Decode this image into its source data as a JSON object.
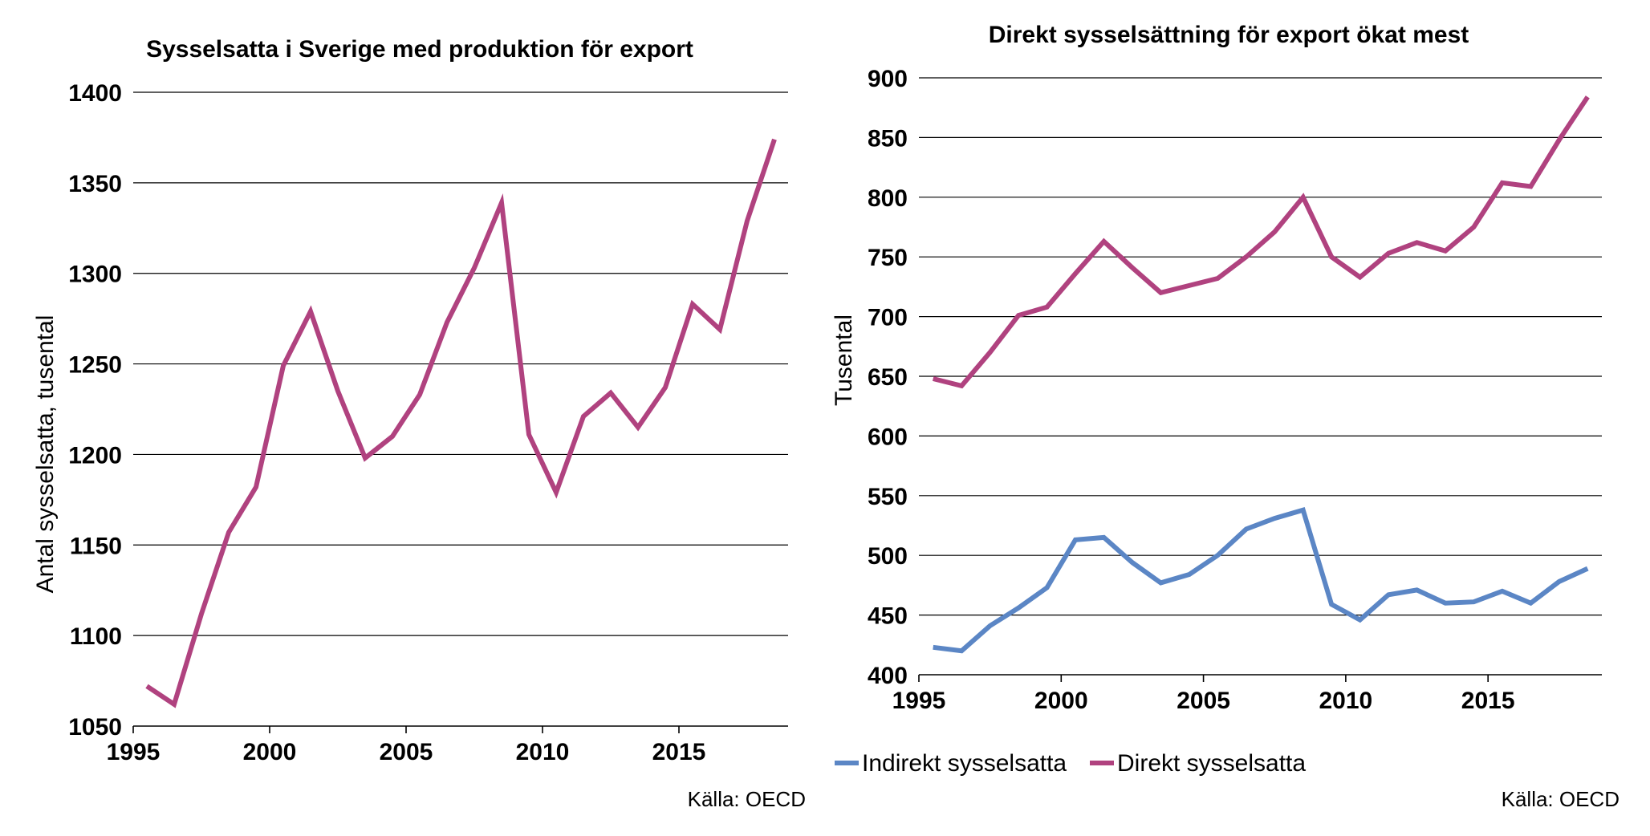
{
  "chart_data": [
    {
      "type": "line",
      "title": "Sysselsatta i Sverige med produktion för export",
      "xlabel": "",
      "ylabel": "Antal sysselsatta, tusental",
      "source": "Källa: OECD",
      "xlim": [
        1995,
        2019
      ],
      "ylim": [
        1050,
        1400
      ],
      "xticks": [
        "1995",
        "2000",
        "2005",
        "2010",
        "2015"
      ],
      "yticks": [
        "1050",
        "1100",
        "1150",
        "1200",
        "1250",
        "1300",
        "1350",
        "1400"
      ],
      "grid": "horizontal",
      "x": [
        1995.5,
        1996.5,
        1997.5,
        1998.5,
        1999.5,
        2000.5,
        2001.5,
        2002.5,
        2003.5,
        2004.5,
        2005.5,
        2006.5,
        2007.5,
        2008.5,
        2009.5,
        2010.5,
        2011.5,
        2012.5,
        2013.5,
        2014.5,
        2015.5,
        2016.5,
        2017.5,
        2018.5
      ],
      "series": [
        {
          "color": "#b0427f",
          "values": [
            1072,
            1062,
            1112,
            1157,
            1182,
            1249,
            1279,
            1235,
            1198,
            1210,
            1233,
            1273,
            1303,
            1339,
            1211,
            1179,
            1221,
            1234,
            1215,
            1237,
            1283,
            1269,
            1329,
            1374
          ]
        }
      ]
    },
    {
      "type": "line",
      "title": "Direkt sysselsättning för export ökat mest",
      "xlabel": "",
      "ylabel": "Tusental",
      "source": "Källa: OECD",
      "xlim": [
        1995,
        2019
      ],
      "ylim": [
        400,
        900
      ],
      "xticks": [
        "1995",
        "2000",
        "2005",
        "2010",
        "2015"
      ],
      "yticks": [
        "400",
        "450",
        "500",
        "550",
        "600",
        "650",
        "700",
        "750",
        "800",
        "850",
        "900"
      ],
      "grid": "horizontal",
      "legend": "bottom",
      "x": [
        1995.5,
        1996.5,
        1997.5,
        1998.5,
        1999.5,
        2000.5,
        2001.5,
        2002.5,
        2003.5,
        2004.5,
        2005.5,
        2006.5,
        2007.5,
        2008.5,
        2009.5,
        2010.5,
        2011.5,
        2012.5,
        2013.5,
        2014.5,
        2015.5,
        2016.5,
        2017.5,
        2018.5
      ],
      "series": [
        {
          "name": "Indirekt sysselsatta",
          "color": "#5b86c5",
          "values": [
            423,
            420,
            441,
            456,
            473,
            513,
            515,
            494,
            477,
            484,
            500,
            522,
            531,
            538,
            459,
            446,
            467,
            471,
            460,
            461,
            470,
            460,
            478,
            489
          ]
        },
        {
          "name": "Direkt sysselsatta",
          "color": "#b0427f",
          "values": [
            648,
            642,
            670,
            701,
            708,
            736,
            763,
            741,
            720,
            726,
            732,
            750,
            771,
            800,
            750,
            733,
            753,
            762,
            755,
            775,
            812,
            809,
            848,
            884
          ]
        }
      ]
    }
  ]
}
